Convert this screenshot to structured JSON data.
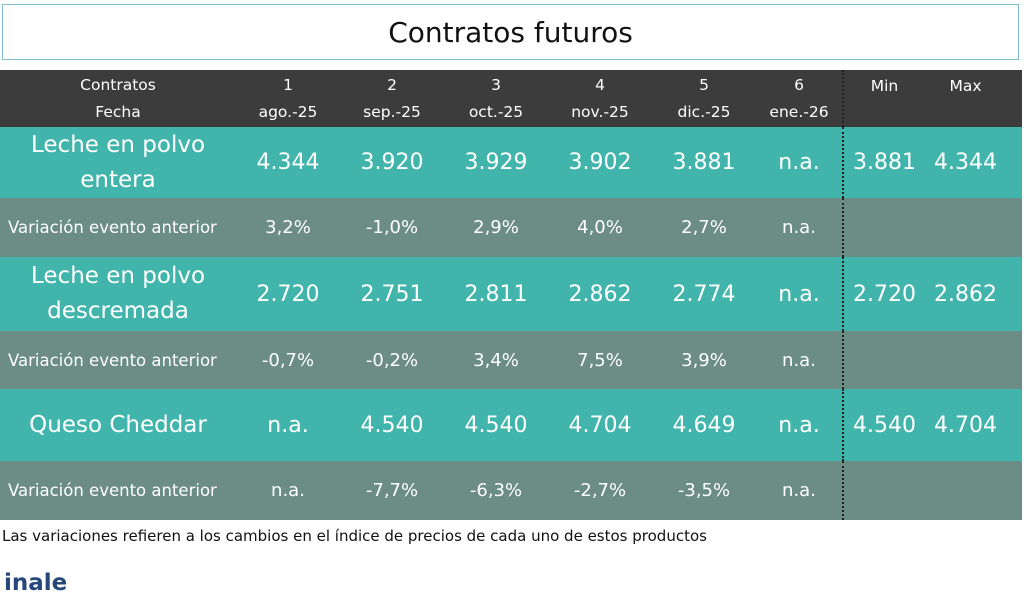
{
  "title": "Contratos futuros",
  "header": {
    "col0": [
      "Contratos",
      "Fecha"
    ],
    "events": [
      {
        "num": "1",
        "date": "ago.-25"
      },
      {
        "num": "2",
        "date": "sep.-25"
      },
      {
        "num": "3",
        "date": "oct.-25"
      },
      {
        "num": "4",
        "date": "nov.-25"
      },
      {
        "num": "5",
        "date": "dic.-25"
      },
      {
        "num": "6",
        "date": "ene.-26"
      }
    ],
    "min": "Min",
    "max": "Max"
  },
  "rows": [
    {
      "type": "main",
      "label": "Leche en polvo entera",
      "values": [
        "4.344",
        "3.920",
        "3.929",
        "3.902",
        "3.881",
        "n.a."
      ],
      "min": "3.881",
      "max": "4.344"
    },
    {
      "type": "var",
      "label": "Variación evento anterior",
      "values": [
        "3,2%",
        "-1,0%",
        "2,9%",
        "4,0%",
        "2,7%",
        "n.a."
      ],
      "min": "",
      "max": ""
    },
    {
      "type": "main",
      "label": "Leche en polvo descremada",
      "values": [
        "2.720",
        "2.751",
        "2.811",
        "2.862",
        "2.774",
        "n.a."
      ],
      "min": "2.720",
      "max": "2.862"
    },
    {
      "type": "var",
      "label": "Variación evento anterior",
      "values": [
        "-0,7%",
        "-0,2%",
        "3,4%",
        "7,5%",
        "3,9%",
        "n.a."
      ],
      "min": "",
      "max": ""
    },
    {
      "type": "main",
      "label": "Queso Cheddar",
      "values": [
        "n.a.",
        "4.540",
        "4.540",
        "4.704",
        "4.649",
        "n.a."
      ],
      "min": "4.540",
      "max": "4.704"
    },
    {
      "type": "var",
      "label": "Variación evento anterior",
      "values": [
        "n.a.",
        "-7,7%",
        "-6,3%",
        "-2,7%",
        "-3,5%",
        "n.a."
      ],
      "min": "",
      "max": ""
    }
  ],
  "footnote": "Las variaciones refieren a los cambios en el índice de precios de cada uno de estos productos",
  "logo": "inale",
  "colors": {
    "header_bg": "#3c3c3c",
    "main_row_bg": "#41b5ac",
    "var_row_bg": "#6b8d86",
    "logo": "#26477a"
  }
}
